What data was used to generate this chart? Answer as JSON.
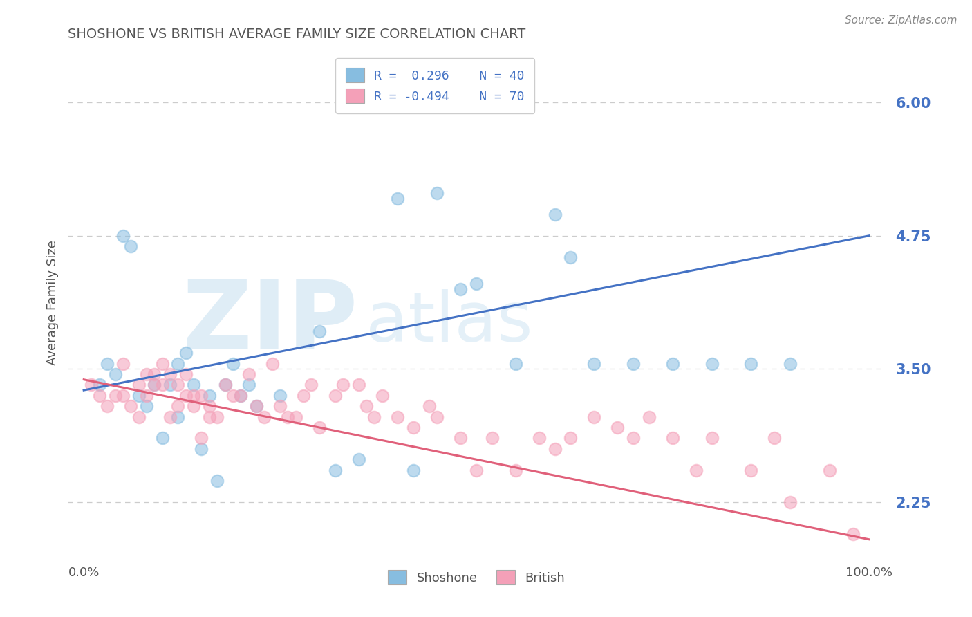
{
  "title": "SHOSHONE VS BRITISH AVERAGE FAMILY SIZE CORRELATION CHART",
  "source_text": "Source: ZipAtlas.com",
  "ylabel": "Average Family Size",
  "xlim": [
    -2.0,
    102.0
  ],
  "ylim": [
    1.75,
    6.5
  ],
  "yticks": [
    2.25,
    3.5,
    4.75,
    6.0
  ],
  "xticks": [
    0.0,
    100.0
  ],
  "xticklabels": [
    "0.0%",
    "100.0%"
  ],
  "shoshone_color": "#87bde0",
  "british_color": "#f4a0b8",
  "trend_blue": "#4472c4",
  "trend_pink": "#e0607a",
  "grid_color": "#cccccc",
  "background_color": "#ffffff",
  "axis_label_color": "#4472c4",
  "title_color": "#555555",
  "legend_line1": "R =  0.296    N = 40",
  "legend_line2": "R = -0.494    N = 70",
  "shoshone_label": "Shoshone",
  "british_label": "British",
  "shoshone_x": [
    2,
    3,
    4,
    5,
    6,
    7,
    8,
    9,
    10,
    11,
    12,
    12,
    13,
    14,
    15,
    16,
    17,
    18,
    19,
    20,
    21,
    22,
    25,
    30,
    32,
    35,
    40,
    42,
    45,
    48,
    50,
    55,
    60,
    62,
    65,
    70,
    75,
    80,
    85,
    90
  ],
  "shoshone_y": [
    3.35,
    3.55,
    3.45,
    4.75,
    4.65,
    3.25,
    3.15,
    3.35,
    2.85,
    3.35,
    3.55,
    3.05,
    3.65,
    3.35,
    2.75,
    3.25,
    2.45,
    3.35,
    3.55,
    3.25,
    3.35,
    3.15,
    3.25,
    3.85,
    2.55,
    2.65,
    5.1,
    2.55,
    5.15,
    4.25,
    4.3,
    3.55,
    4.95,
    4.55,
    3.55,
    3.55,
    3.55,
    3.55,
    3.55,
    3.55
  ],
  "british_x": [
    1,
    2,
    3,
    4,
    5,
    5,
    6,
    7,
    7,
    8,
    8,
    9,
    9,
    10,
    10,
    11,
    11,
    12,
    12,
    13,
    13,
    14,
    14,
    15,
    15,
    16,
    16,
    17,
    18,
    19,
    20,
    21,
    22,
    23,
    24,
    25,
    26,
    27,
    28,
    29,
    30,
    32,
    33,
    35,
    36,
    37,
    38,
    40,
    42,
    44,
    45,
    48,
    50,
    52,
    55,
    58,
    60,
    62,
    65,
    68,
    70,
    72,
    75,
    78,
    80,
    85,
    88,
    90,
    95,
    98
  ],
  "british_y": [
    3.35,
    3.25,
    3.15,
    3.25,
    3.25,
    3.55,
    3.15,
    3.05,
    3.35,
    3.25,
    3.45,
    3.45,
    3.35,
    3.35,
    3.55,
    3.05,
    3.45,
    3.15,
    3.35,
    3.25,
    3.45,
    3.15,
    3.25,
    2.85,
    3.25,
    3.15,
    3.05,
    3.05,
    3.35,
    3.25,
    3.25,
    3.45,
    3.15,
    3.05,
    3.55,
    3.15,
    3.05,
    3.05,
    3.25,
    3.35,
    2.95,
    3.25,
    3.35,
    3.35,
    3.15,
    3.05,
    3.25,
    3.05,
    2.95,
    3.15,
    3.05,
    2.85,
    2.55,
    2.85,
    2.55,
    2.85,
    2.75,
    2.85,
    3.05,
    2.95,
    2.85,
    3.05,
    2.85,
    2.55,
    2.85,
    2.55,
    2.85,
    2.25,
    2.55,
    1.95
  ],
  "trend_blue_x0": 3.3,
  "trend_blue_x100": 4.75,
  "trend_pink_x0": 3.4,
  "trend_pink_x100": 1.9
}
